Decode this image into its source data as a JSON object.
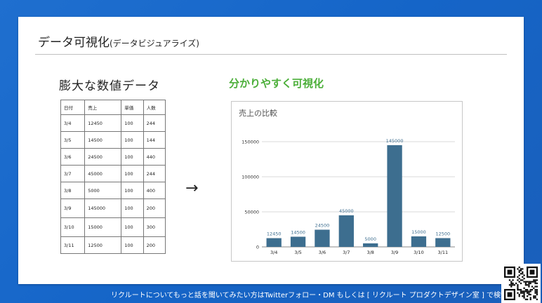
{
  "slide": {
    "title": "データ可視化",
    "title_sub": "(データビジュアライズ)",
    "left_heading": "膨大な数値データ",
    "right_heading": "分かりやすく可視化",
    "arrow": "→"
  },
  "table": {
    "headers": [
      "日付",
      "売上",
      "単価",
      "人数"
    ],
    "rows": [
      [
        "3/4",
        "12450",
        "100",
        "244"
      ],
      [
        "3/5",
        "14500",
        "100",
        "144"
      ],
      [
        "3/6",
        "24500",
        "100",
        "440"
      ],
      [
        "3/7",
        "45000",
        "100",
        "244"
      ],
      [
        "3/8",
        "5000",
        "100",
        "400"
      ],
      [
        "3/9",
        "145000",
        "100",
        "200"
      ],
      [
        "3/10",
        "15000",
        "100",
        "300"
      ],
      [
        "3/11",
        "12500",
        "100",
        "200"
      ]
    ]
  },
  "chart_data": {
    "type": "bar",
    "title": "売上の比較",
    "categories": [
      "3/4",
      "3/5",
      "3/6",
      "3/7",
      "3/8",
      "3/9",
      "3/10",
      "3/11"
    ],
    "values": [
      12450,
      14500,
      24500,
      45000,
      5000,
      145000,
      15000,
      12500
    ],
    "data_labels": [
      "12450",
      "14500",
      "24500",
      "45000",
      "5000",
      "145000",
      "15000",
      "12500"
    ],
    "y_ticks": [
      0,
      50000,
      100000,
      150000
    ],
    "y_tick_labels": [
      "0",
      "50000",
      "100000",
      "150000"
    ],
    "ylim": [
      0,
      150000
    ],
    "grid": true,
    "legend": false,
    "colors": {
      "bar": "#3d6e8f",
      "label": "#3d6e8f"
    }
  },
  "footer": {
    "ticker": "リクルートについてもっと話を聞いてみたい方はTwitterフォロー・DM もしくは [ リクルート プロダクトデザイン室 ] で検索！"
  },
  "icons": {
    "qr": "qr-code-icon"
  }
}
